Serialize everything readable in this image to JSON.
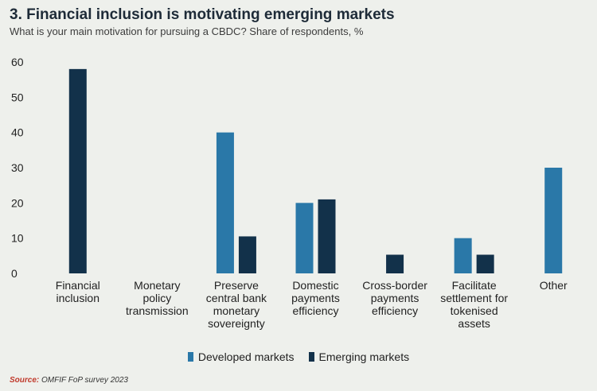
{
  "title": "3. Financial inclusion is motivating emerging markets",
  "subtitle": "What is your main motivation for pursuing a CBDC? Share of respondents, %",
  "source_label": "Source:",
  "source_text": " OMFIF FoP survey 2023",
  "colors": {
    "developed": "#2a78a8",
    "emerging": "#12314a"
  },
  "chart_data": {
    "type": "bar",
    "categories": [
      [
        "Financial",
        "inclusion"
      ],
      [
        "Monetary",
        "policy",
        "transmission"
      ],
      [
        "Preserve",
        "central bank",
        "monetary",
        "sovereignty"
      ],
      [
        "Domestic",
        "payments",
        "efficiency"
      ],
      [
        "Cross-border",
        "payments",
        "efficiency"
      ],
      [
        "Facilitate",
        "settlement for",
        "tokenised",
        "assets"
      ],
      [
        "Other"
      ]
    ],
    "series": [
      {
        "name": "Developed markets",
        "values": [
          0,
          0,
          40,
          20,
          0,
          10,
          30
        ]
      },
      {
        "name": "Emerging markets",
        "values": [
          58,
          0,
          10.5,
          21,
          5.3,
          5.3,
          0
        ]
      }
    ],
    "ylim": [
      0,
      60
    ],
    "yticks": [
      0,
      10,
      20,
      30,
      40,
      50,
      60
    ],
    "legend_position": "bottom",
    "grid": false
  }
}
